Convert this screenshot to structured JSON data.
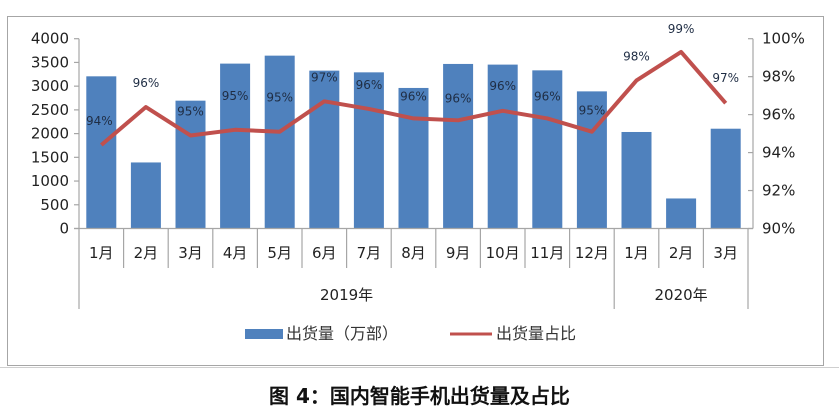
{
  "chart_data": {
    "type": "bar+line",
    "title": "图 4：国内智能手机出货量及占比",
    "categories": [
      "1月",
      "2月",
      "3月",
      "4月",
      "5月",
      "6月",
      "7月",
      "8月",
      "9月",
      "10月",
      "11月",
      "12月",
      "1月",
      "2月",
      "3月"
    ],
    "category_groups": [
      {
        "label": "2019年",
        "start": 0,
        "end": 11
      },
      {
        "label": "2020年",
        "start": 12,
        "end": 14
      }
    ],
    "series": [
      {
        "name": "出货量（万部）",
        "type": "bar",
        "axis": "left",
        "color": "#4f81bd",
        "values": [
          3207,
          1392,
          2694,
          3475,
          3643,
          3327,
          3291,
          2962,
          3468,
          3454,
          3333,
          2890,
          2034,
          633,
          2103
        ]
      },
      {
        "name": "出货量占比",
        "type": "line",
        "axis": "right",
        "color": "#c0504d",
        "values": [
          94.4,
          96.4,
          94.9,
          95.2,
          95.1,
          96.7,
          96.3,
          95.8,
          95.7,
          96.2,
          95.8,
          95.1,
          97.8,
          99.3,
          96.6
        ],
        "data_labels": [
          "94%",
          "96%",
          "95%",
          "95%",
          "95%",
          "97%",
          "96%",
          "96%",
          "96%",
          "96%",
          "96%",
          "95%",
          "98%",
          "99%",
          "97%"
        ]
      }
    ],
    "left_axis": {
      "min": 0,
      "max": 4000,
      "step": 500,
      "ticks": [
        "0",
        "500",
        "1000",
        "1500",
        "2000",
        "2500",
        "3000",
        "3500",
        "4000"
      ]
    },
    "right_axis": {
      "min": 90,
      "max": 100,
      "step": 2,
      "ticks": [
        "90%",
        "92%",
        "94%",
        "96%",
        "98%",
        "100%"
      ]
    },
    "xlabel": "",
    "ylabel": "",
    "legend": {
      "position": "bottom",
      "entries": [
        "出货量（万部）",
        "出货量占比"
      ]
    },
    "grid": false
  },
  "legend": {
    "bar_label": "出货量（万部）",
    "line_label": "出货量占比"
  },
  "caption": "图 4：国内智能手机出货量及占比",
  "colors": {
    "bar": "#4f81bd",
    "line": "#c0504d",
    "axis": "#a6a6a6"
  }
}
